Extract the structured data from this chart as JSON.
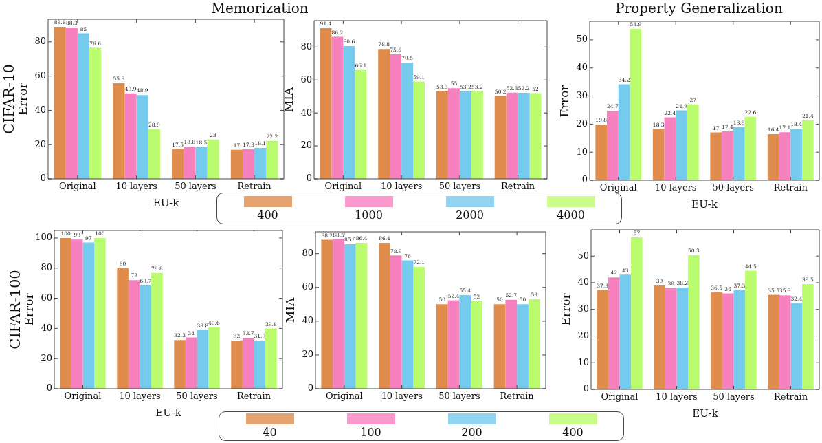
{
  "chart_data": [
    {
      "type": "bar",
      "title": "Memorization",
      "ylabel": "Error",
      "xlabel": "EU-k",
      "annotations": [
        "CIFAR-10"
      ],
      "categories": [
        "Original",
        "10 layers",
        "50 layers",
        "Retrain"
      ],
      "ylim": [
        0,
        93.2
      ],
      "yticks": [
        0,
        20,
        40,
        60,
        80
      ],
      "data_labels": true,
      "series": [
        {
          "color": "#e08c4c",
          "values": [
            88.8,
            55.8,
            17.5,
            17
          ]
        },
        {
          "color": "#f780bf",
          "values": [
            88.3,
            49.9,
            18.8,
            17.3
          ]
        },
        {
          "color": "#75cbee",
          "values": [
            85,
            48.9,
            18.5,
            18.1
          ]
        },
        {
          "color": "#bbfb6e",
          "values": [
            76.6,
            28.9,
            23,
            22.2
          ]
        }
      ]
    },
    {
      "type": "bar",
      "ylabel": "MIA",
      "categories": [
        "Original",
        "10 layers",
        "50 layers",
        "Retrain"
      ],
      "ylim": [
        0,
        96
      ],
      "yticks": [
        0,
        20,
        40,
        60,
        80
      ],
      "data_labels": true,
      "legend": "bottom",
      "series": [
        {
          "name": "400",
          "color": "#e08c4c",
          "values": [
            91.4,
            78.8,
            53.3,
            50.2
          ]
        },
        {
          "name": "1000",
          "color": "#f780bf",
          "values": [
            86.2,
            75.6,
            55,
            52.3
          ]
        },
        {
          "name": "2000",
          "color": "#75cbee",
          "values": [
            80.6,
            70.5,
            53.2,
            52.2
          ]
        },
        {
          "name": "4000",
          "color": "#bbfb6e",
          "values": [
            66.1,
            59.1,
            53.2,
            52
          ]
        }
      ]
    },
    {
      "type": "bar",
      "title": "Property Generalization",
      "ylabel": "Error",
      "xlabel": "EU-k",
      "categories": [
        "Original",
        "10 layers",
        "50 layers",
        "Retrain"
      ],
      "ylim": [
        0,
        56.6
      ],
      "yticks": [
        0,
        10,
        20,
        30,
        40,
        50
      ],
      "data_labels": true,
      "series": [
        {
          "color": "#e08c4c",
          "values": [
            19.8,
            18.3,
            17,
            16.4
          ]
        },
        {
          "color": "#f780bf",
          "values": [
            24.7,
            22.4,
            17.4,
            17.1
          ]
        },
        {
          "color": "#75cbee",
          "values": [
            34.2,
            24.9,
            18.9,
            18.4
          ]
        },
        {
          "color": "#bbfb6e",
          "values": [
            53.9,
            27,
            22.6,
            21.4
          ]
        }
      ]
    },
    {
      "type": "bar",
      "ylabel": "Error",
      "xlabel": "EU-k",
      "annotations": [
        "CIFAR-100"
      ],
      "categories": [
        "Original",
        "10 layers",
        "50 layers",
        "Retrain"
      ],
      "ylim": [
        0,
        105
      ],
      "yticks": [
        0,
        20,
        40,
        60,
        80,
        100
      ],
      "data_labels": true,
      "series": [
        {
          "color": "#e08c4c",
          "values": [
            100,
            80,
            32.3,
            32
          ]
        },
        {
          "color": "#f780bf",
          "values": [
            99,
            72,
            34,
            33.7
          ]
        },
        {
          "color": "#75cbee",
          "values": [
            97,
            68.7,
            38.8,
            31.9
          ]
        },
        {
          "color": "#bbfb6e",
          "values": [
            100,
            76.8,
            40.6,
            39.8
          ]
        }
      ]
    },
    {
      "type": "bar",
      "ylabel": "MIA",
      "categories": [
        "Original",
        "10 layers",
        "50 layers",
        "Retrain"
      ],
      "ylim": [
        0,
        92.9
      ],
      "yticks": [
        0,
        20,
        40,
        60,
        80
      ],
      "data_labels": true,
      "legend": "bottom",
      "series": [
        {
          "name": "40",
          "color": "#e08c4c",
          "values": [
            88.2,
            86.4,
            50,
            50
          ]
        },
        {
          "name": "100",
          "color": "#f780bf",
          "values": [
            88.5,
            78.9,
            52.4,
            52.7
          ]
        },
        {
          "name": "200",
          "color": "#75cbee",
          "values": [
            85.6,
            76,
            55.4,
            50
          ]
        },
        {
          "name": "400",
          "color": "#bbfb6e",
          "values": [
            86.4,
            72.1,
            52,
            53
          ]
        }
      ]
    },
    {
      "type": "bar",
      "ylabel": "Error",
      "xlabel": "EU-k",
      "categories": [
        "Original",
        "10 layers",
        "50 layers",
        "Retrain"
      ],
      "ylim": [
        0,
        59.85
      ],
      "yticks": [
        0,
        10,
        20,
        30,
        40,
        50
      ],
      "data_labels": true,
      "series": [
        {
          "color": "#e08c4c",
          "values": [
            37.3,
            39,
            36.5,
            35.5
          ]
        },
        {
          "color": "#f780bf",
          "values": [
            42,
            38,
            36,
            35.3
          ]
        },
        {
          "color": "#75cbee",
          "values": [
            43,
            38.2,
            37.3,
            32.4
          ]
        },
        {
          "color": "#bbfb6e",
          "values": [
            57,
            50.3,
            44.5,
            39.5
          ]
        }
      ]
    }
  ]
}
